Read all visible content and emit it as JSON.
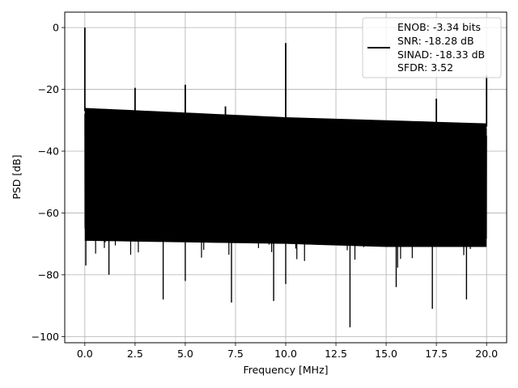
{
  "chart_data": {
    "type": "line",
    "xlabel": "Frequency [MHz]",
    "ylabel": "PSD [dB]",
    "xlim": [
      -1.0,
      21.0
    ],
    "ylim": [
      -102,
      5
    ],
    "xticks": [
      0.0,
      2.5,
      5.0,
      7.5,
      10.0,
      12.5,
      15.0,
      17.5,
      20.0
    ],
    "xtick_labels": [
      "0.0",
      "2.5",
      "5.0",
      "7.5",
      "10.0",
      "12.5",
      "15.0",
      "17.5",
      "20.0"
    ],
    "yticks": [
      0,
      -20,
      -40,
      -60,
      -80,
      -100
    ],
    "ytick_labels": [
      "0",
      "−20",
      "−40",
      "−60",
      "−80",
      "−100"
    ],
    "grid": true,
    "legend_placement": "top-right",
    "line_color": "#000000",
    "series": [
      {
        "noise_floor_upper_db": [
          [
            0.0,
            -27
          ],
          [
            5.0,
            -28.5
          ],
          [
            10.0,
            -30
          ],
          [
            15.0,
            -31
          ],
          [
            20.0,
            -32
          ]
        ],
        "noise_floor_lower_db": [
          [
            0.0,
            -68
          ],
          [
            5.0,
            -68.5
          ],
          [
            10.0,
            -69
          ],
          [
            15.0,
            -70
          ],
          [
            20.0,
            -70
          ]
        ],
        "spikes": [
          {
            "x": 0.0,
            "y": 0
          },
          {
            "x": 2.5,
            "y": -19.5
          },
          {
            "x": 5.0,
            "y": -18.5
          },
          {
            "x": 7.0,
            "y": -25.5
          },
          {
            "x": 10.0,
            "y": -5
          },
          {
            "x": 17.5,
            "y": -23
          },
          {
            "x": 20.0,
            "y": -15.5
          }
        ],
        "dips": [
          {
            "x": 0.05,
            "y": -77
          },
          {
            "x": 1.2,
            "y": -80
          },
          {
            "x": 3.9,
            "y": -88
          },
          {
            "x": 5.0,
            "y": -82
          },
          {
            "x": 7.3,
            "y": -89
          },
          {
            "x": 9.4,
            "y": -88.5
          },
          {
            "x": 10.0,
            "y": -83
          },
          {
            "x": 13.2,
            "y": -97
          },
          {
            "x": 15.5,
            "y": -84
          },
          {
            "x": 17.3,
            "y": -91
          },
          {
            "x": 19.0,
            "y": -88
          }
        ]
      }
    ],
    "legend_lines": [
      "ENOB: -3.34 bits",
      "SNR: -18.28 dB",
      "SINAD: -18.33 dB",
      "SFDR: 3.52"
    ]
  }
}
